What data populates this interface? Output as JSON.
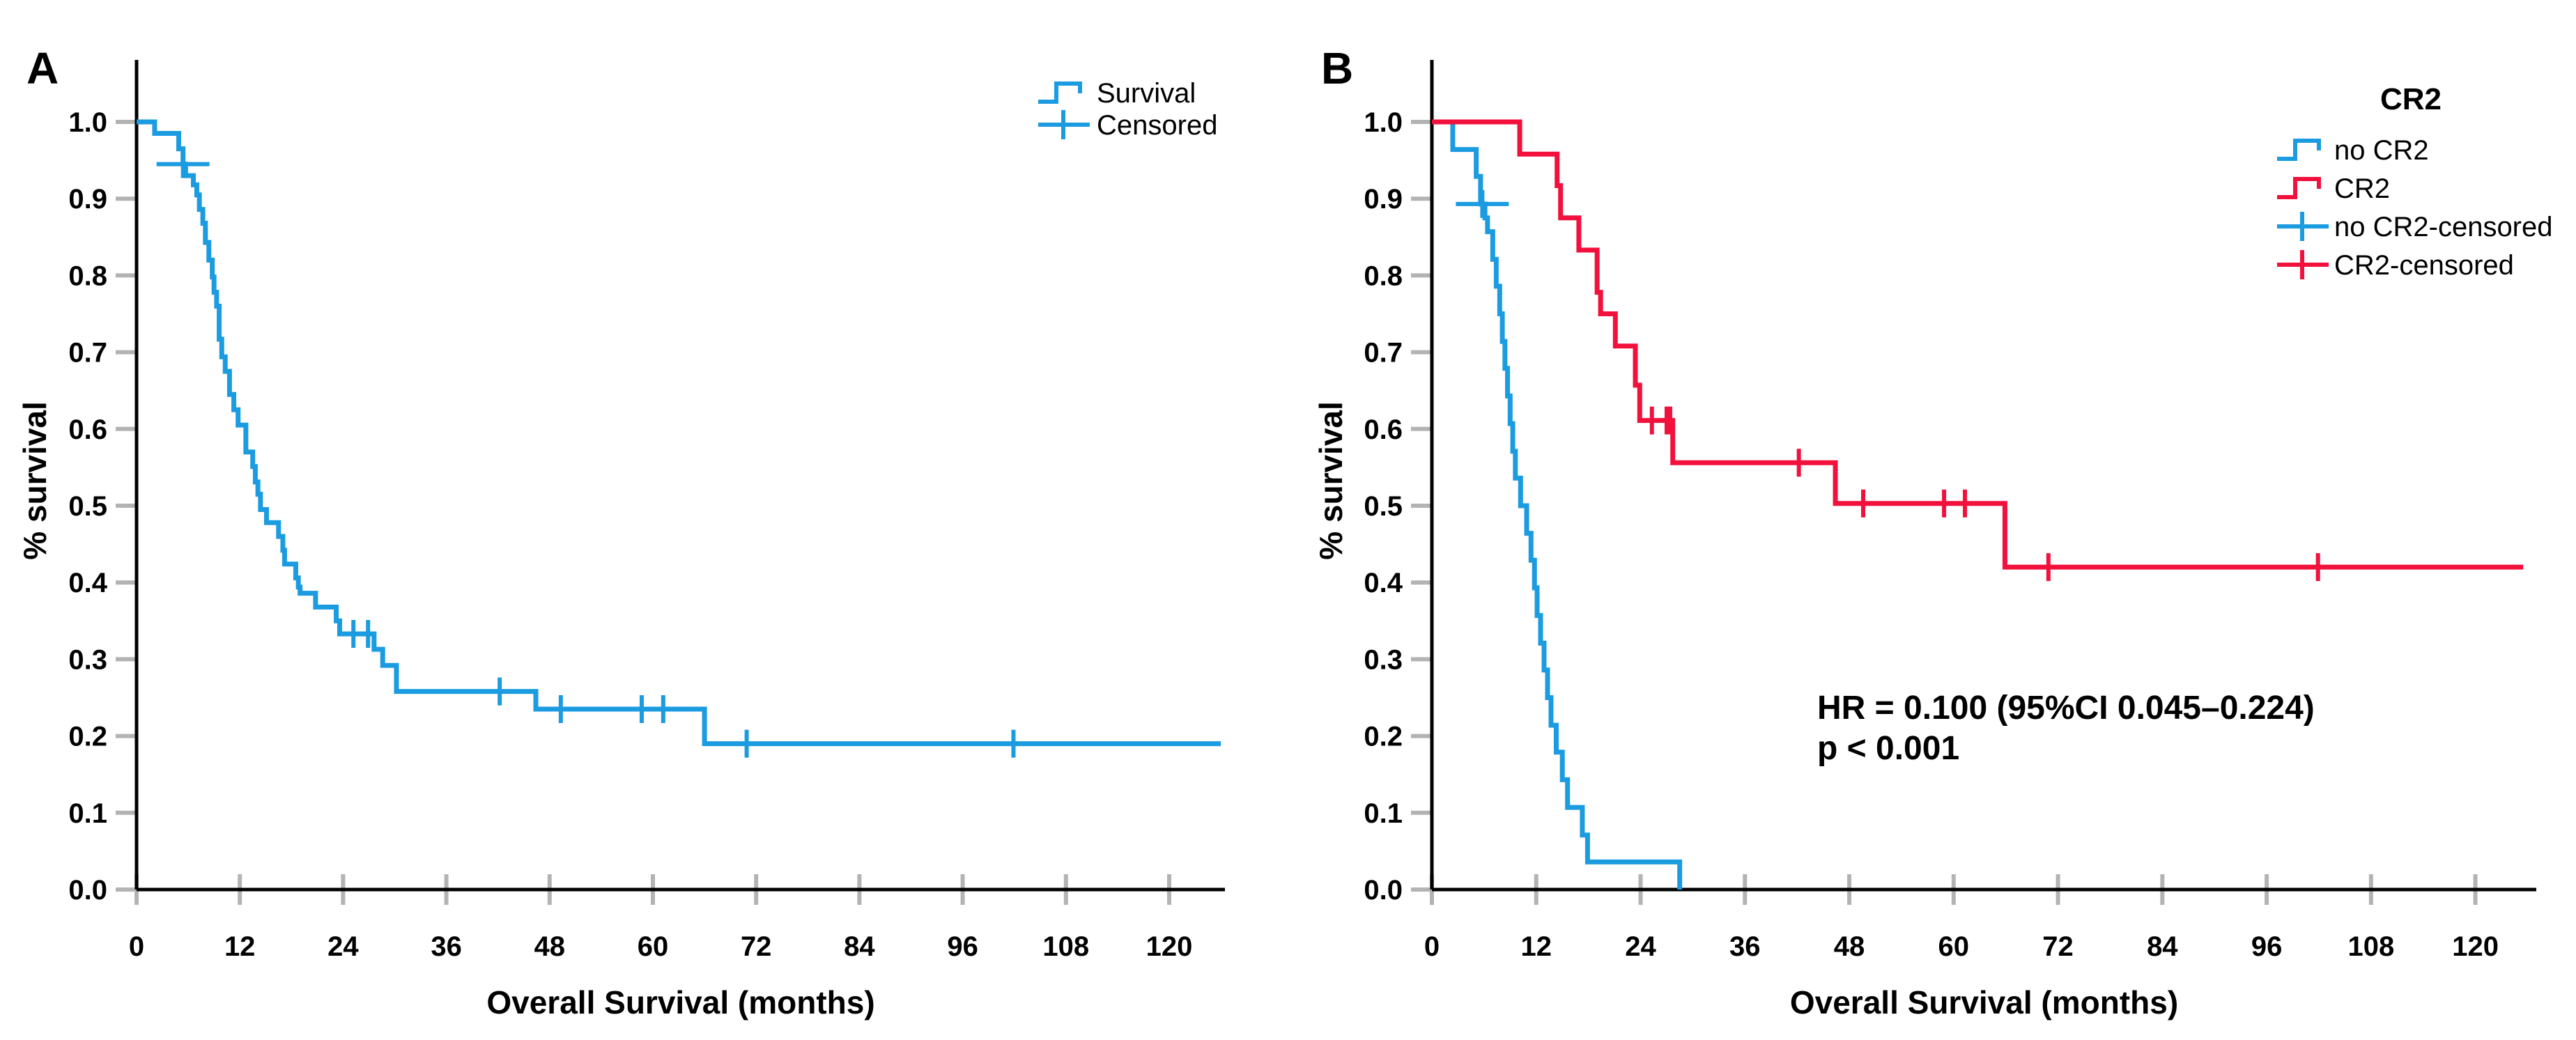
{
  "figure": {
    "background": "#ffffff",
    "axis_color": "#000000",
    "tick_color": "#b3b3b3"
  },
  "chart_data": [
    {
      "type": "line",
      "subtype": "kaplan-meier-step",
      "panel_label": "A",
      "xlabel": "Overall Survival (months)",
      "ylabel": "% survival",
      "xlim": [
        0,
        126
      ],
      "ylim": [
        0.0,
        1.0
      ],
      "grid": false,
      "xticks": [
        0,
        12,
        24,
        36,
        48,
        60,
        72,
        84,
        96,
        108,
        120
      ],
      "xtick_labels": [
        "0",
        "12",
        "24",
        "36",
        "48",
        "60",
        "72",
        "84",
        "96",
        "108",
        "120"
      ],
      "yticks": [
        0.0,
        0.1,
        0.2,
        0.3,
        0.4,
        0.5,
        0.6,
        0.7,
        0.8,
        0.9,
        1.0
      ],
      "ytick_labels": [
        "0.0",
        "0.1",
        "0.2",
        "0.3",
        "0.4",
        "0.5",
        "0.6",
        "0.7",
        "0.8",
        "0.9",
        "1.0"
      ],
      "legend": {
        "position": "top-right",
        "title": "",
        "entries": [
          {
            "label": "Survival",
            "symbol": "step",
            "color": "#1B9BE0"
          },
          {
            "label": "Censored",
            "symbol": "plus",
            "color": "#1B9BE0"
          }
        ]
      },
      "series": [
        {
          "name": "Survival",
          "color": "#1B9BE0",
          "end_time": 126,
          "step_points": [
            [
              0,
              1.0
            ],
            [
              2.1,
              0.985
            ],
            [
              4.9,
              0.965
            ],
            [
              5.4,
              0.945
            ],
            [
              5.7,
              0.93
            ],
            [
              6.6,
              0.918
            ],
            [
              7.0,
              0.905
            ],
            [
              7.3,
              0.886
            ],
            [
              7.7,
              0.868
            ],
            [
              8.0,
              0.843
            ],
            [
              8.4,
              0.82
            ],
            [
              8.8,
              0.798
            ],
            [
              9.0,
              0.778
            ],
            [
              9.3,
              0.76
            ],
            [
              9.6,
              0.717
            ],
            [
              9.9,
              0.694
            ],
            [
              10.3,
              0.675
            ],
            [
              10.8,
              0.645
            ],
            [
              11.3,
              0.625
            ],
            [
              11.8,
              0.605
            ],
            [
              12.7,
              0.57
            ],
            [
              13.5,
              0.551
            ],
            [
              13.8,
              0.531
            ],
            [
              14.1,
              0.515
            ],
            [
              14.4,
              0.495
            ],
            [
              15.1,
              0.478
            ],
            [
              16.5,
              0.46
            ],
            [
              17.0,
              0.442
            ],
            [
              17.2,
              0.424
            ],
            [
              18.5,
              0.406
            ],
            [
              18.8,
              0.394
            ],
            [
              19.0,
              0.386
            ],
            [
              20.8,
              0.368
            ],
            [
              23.2,
              0.35
            ],
            [
              23.6,
              0.333
            ],
            [
              27.6,
              0.313
            ],
            [
              28.6,
              0.292
            ],
            [
              30.2,
              0.258
            ],
            [
              46.4,
              0.235
            ],
            [
              66.0,
              0.19
            ]
          ],
          "censor_marks": [
            [
              5.4,
              0.945
            ],
            [
              25.2,
              0.333
            ],
            [
              26.9,
              0.333
            ],
            [
              42.2,
              0.258
            ],
            [
              49.3,
              0.235
            ],
            [
              58.7,
              0.235
            ],
            [
              61.2,
              0.235
            ],
            [
              70.9,
              0.19
            ],
            [
              101.9,
              0.19
            ]
          ],
          "wide_censor_marks": [
            [
              5.4,
              0.945
            ]
          ]
        }
      ],
      "annotations": []
    },
    {
      "type": "line",
      "subtype": "kaplan-meier-step",
      "panel_label": "B",
      "xlabel": "Overall Survival (months)",
      "ylabel": "% survival",
      "xlim": [
        0,
        127
      ],
      "ylim": [
        0.0,
        1.0
      ],
      "grid": false,
      "xticks": [
        0,
        12,
        24,
        36,
        48,
        60,
        72,
        84,
        96,
        108,
        120
      ],
      "xtick_labels": [
        "0",
        "12",
        "24",
        "36",
        "48",
        "60",
        "72",
        "84",
        "96",
        "108",
        "120"
      ],
      "yticks": [
        0.0,
        0.1,
        0.2,
        0.3,
        0.4,
        0.5,
        0.6,
        0.7,
        0.8,
        0.9,
        1.0
      ],
      "ytick_labels": [
        "0.0",
        "0.1",
        "0.2",
        "0.3",
        "0.4",
        "0.5",
        "0.6",
        "0.7",
        "0.8",
        "0.9",
        "1.0"
      ],
      "legend": {
        "position": "top-right",
        "title": "CR2",
        "entries": [
          {
            "label": "no CR2",
            "symbol": "step",
            "color": "#1B9BE0"
          },
          {
            "label": "CR2",
            "symbol": "step",
            "color": "#F2103C"
          },
          {
            "label": "no CR2-censored",
            "symbol": "plus",
            "color": "#1B9BE0"
          },
          {
            "label": "CR2-censored",
            "symbol": "plus",
            "color": "#F2103C"
          }
        ]
      },
      "series": [
        {
          "name": "no CR2",
          "color": "#1B9BE0",
          "end_time": 28.5,
          "step_points": [
            [
              0,
              1.0
            ],
            [
              2.4,
              0.964
            ],
            [
              5.1,
              0.929
            ],
            [
              5.6,
              0.893
            ],
            [
              6.1,
              0.875
            ],
            [
              6.4,
              0.857
            ],
            [
              7.0,
              0.821
            ],
            [
              7.4,
              0.786
            ],
            [
              7.8,
              0.75
            ],
            [
              8.1,
              0.714
            ],
            [
              8.4,
              0.679
            ],
            [
              8.7,
              0.643
            ],
            [
              9.0,
              0.607
            ],
            [
              9.3,
              0.571
            ],
            [
              9.6,
              0.536
            ],
            [
              10.2,
              0.5
            ],
            [
              10.9,
              0.464
            ],
            [
              11.4,
              0.429
            ],
            [
              11.8,
              0.393
            ],
            [
              12.1,
              0.357
            ],
            [
              12.5,
              0.321
            ],
            [
              12.9,
              0.286
            ],
            [
              13.3,
              0.25
            ],
            [
              13.7,
              0.214
            ],
            [
              14.3,
              0.179
            ],
            [
              15.0,
              0.143
            ],
            [
              15.6,
              0.107
            ],
            [
              17.3,
              0.071
            ],
            [
              17.9,
              0.036
            ],
            [
              28.5,
              0.0
            ]
          ],
          "censor_marks": [
            [
              5.8,
              0.893
            ]
          ],
          "wide_censor_marks": [
            [
              5.8,
              0.893
            ]
          ]
        },
        {
          "name": "CR2",
          "color": "#F2103C",
          "end_time": 125.5,
          "step_points": [
            [
              0,
              1.0
            ],
            [
              10.1,
              0.958
            ],
            [
              14.4,
              0.917
            ],
            [
              14.8,
              0.875
            ],
            [
              16.9,
              0.833
            ],
            [
              19.0,
              0.778
            ],
            [
              19.4,
              0.75
            ],
            [
              21.1,
              0.708
            ],
            [
              23.4,
              0.657
            ],
            [
              23.9,
              0.611
            ],
            [
              27.7,
              0.556
            ],
            [
              46.4,
              0.503
            ],
            [
              65.9,
              0.42
            ]
          ],
          "censor_marks": [
            [
              25.3,
              0.611
            ],
            [
              27.0,
              0.611
            ],
            [
              27.4,
              0.611
            ],
            [
              42.2,
              0.556
            ],
            [
              49.6,
              0.503
            ],
            [
              58.9,
              0.503
            ],
            [
              61.3,
              0.503
            ],
            [
              70.9,
              0.42
            ],
            [
              101.9,
              0.42
            ]
          ],
          "wide_censor_marks": []
        }
      ],
      "annotations": [
        "HR = 0.100 (95%CI 0.045–0.224)",
        "p < 0.001"
      ]
    }
  ]
}
